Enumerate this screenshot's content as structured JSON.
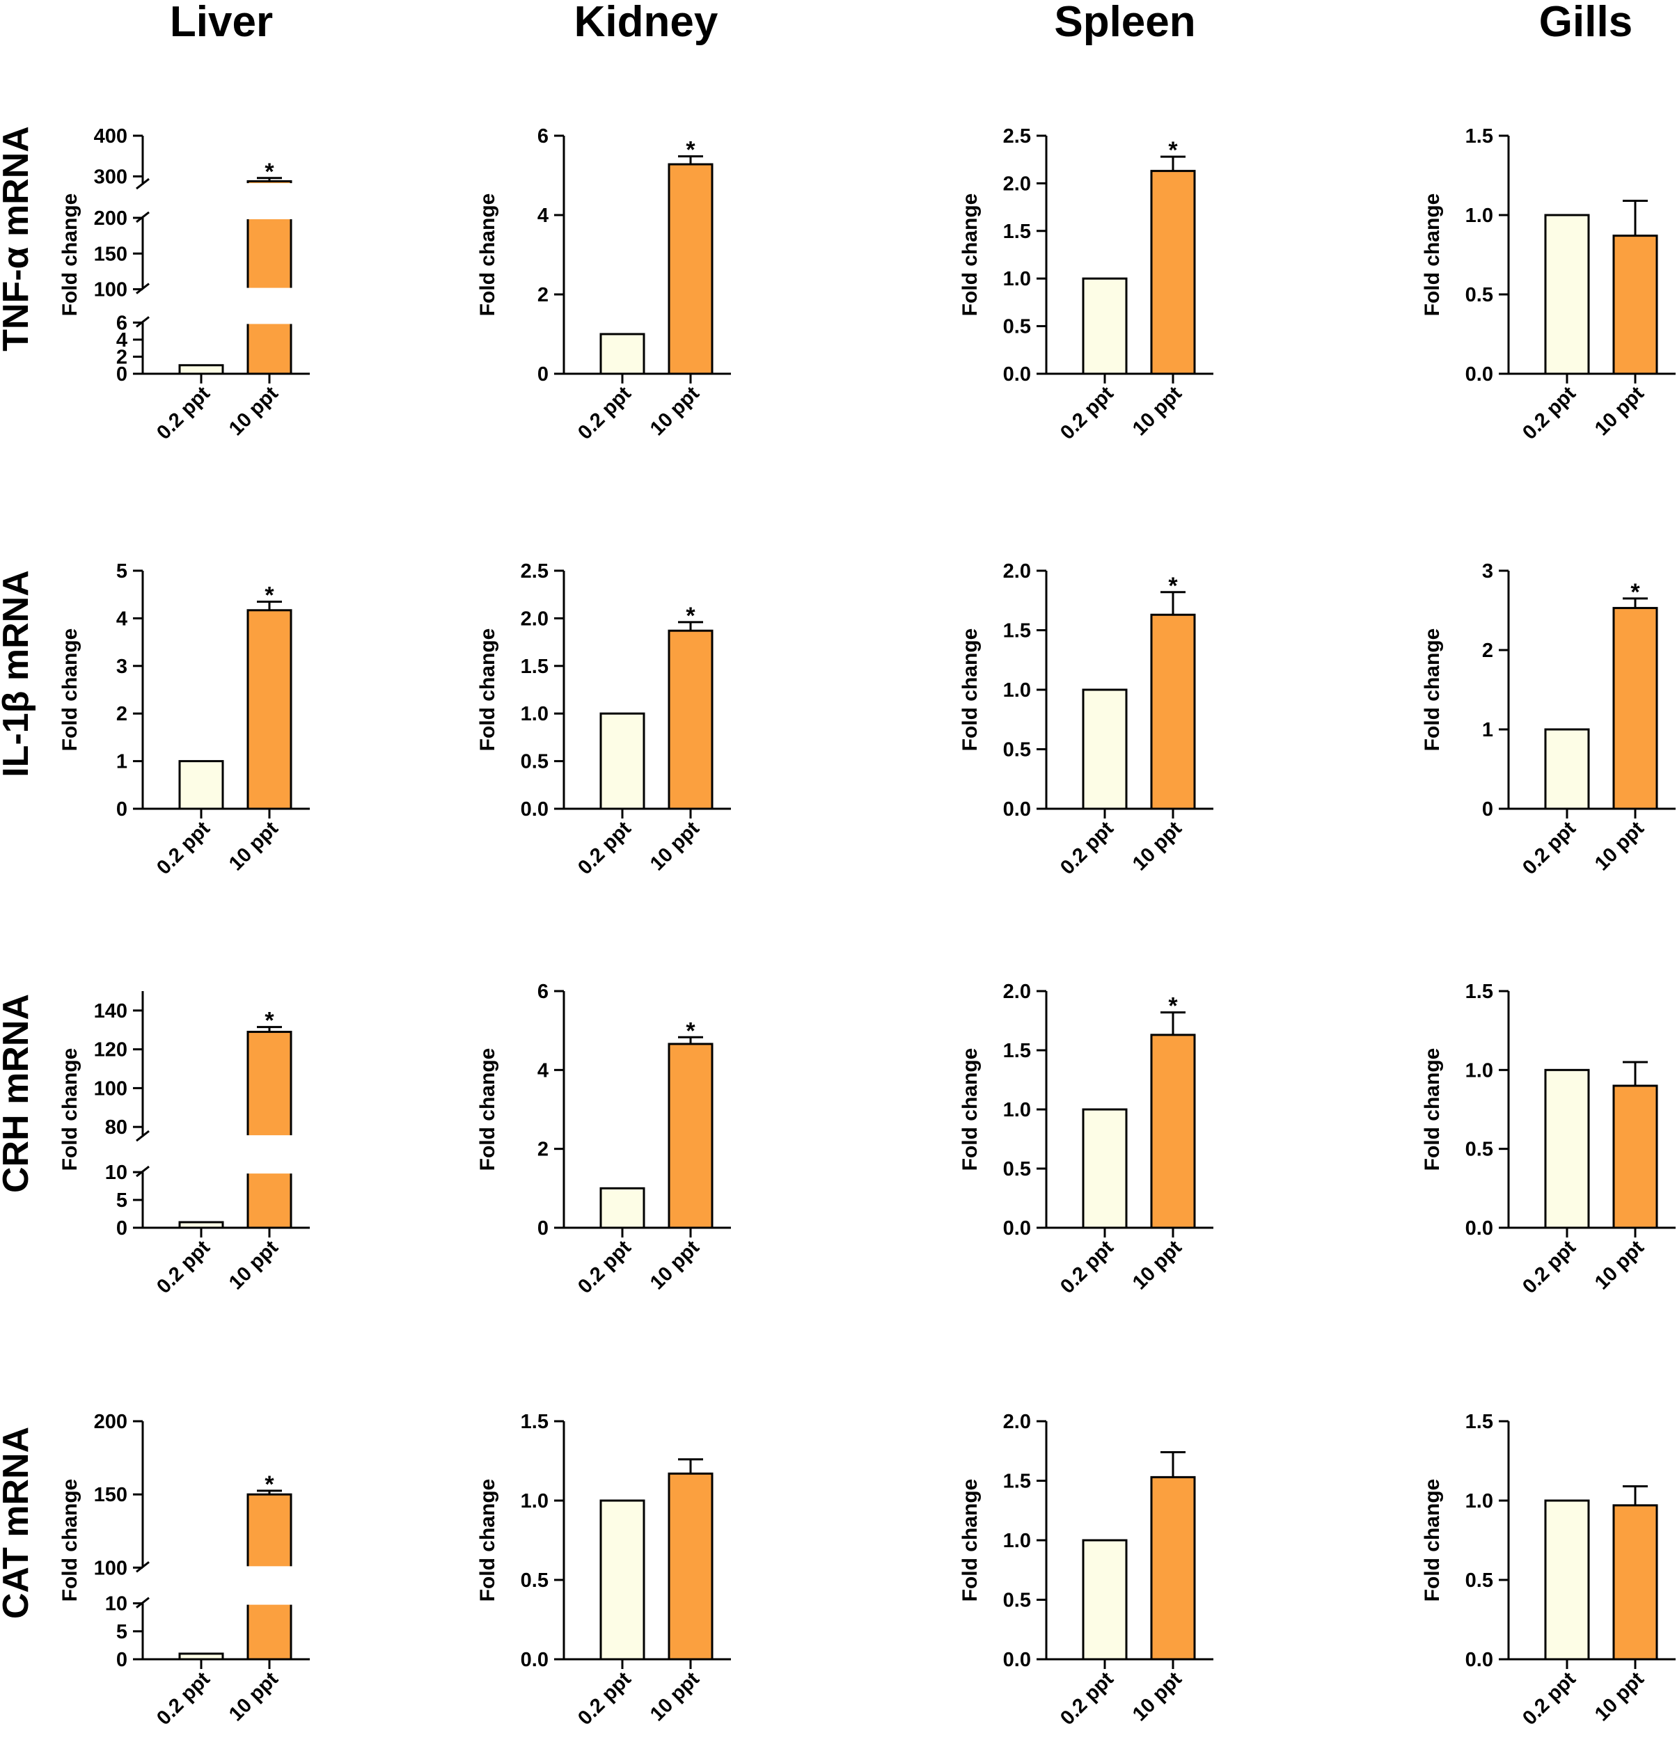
{
  "figure": {
    "tissues": [
      "Liver",
      "Kidney",
      "Spleen",
      "Gills"
    ],
    "genes": [
      "TNF-α mRNA",
      "IL-1β mRNA",
      "CRH mRNA",
      "CAT mRNA"
    ],
    "y_axis_label": "Fold change",
    "categories": [
      "0.2 ppt",
      "10 ppt"
    ],
    "significance_marker": "*",
    "colors": {
      "control_fill": "#fdfde6",
      "treatment_fill": "#fba03f",
      "stroke": "#000000"
    }
  },
  "chart_data": [
    {
      "type": "bar",
      "gene": "TNF-α mRNA",
      "tissue": "Liver",
      "categories": [
        "0.2 ppt",
        "10 ppt"
      ],
      "values": [
        1,
        288
      ],
      "errors": [
        0,
        8
      ],
      "significant": [
        false,
        true
      ],
      "ylabel": "Fold change",
      "broken_axis": true,
      "segments": [
        {
          "range": [
            0,
            6
          ],
          "ticks": [
            "0",
            "2",
            "4",
            "6"
          ]
        },
        {
          "range": [
            100,
            200
          ],
          "ticks": [
            "100",
            "150",
            "200"
          ]
        },
        {
          "range": [
            280,
            400
          ],
          "ticks": [
            "300",
            "400"
          ]
        }
      ]
    },
    {
      "type": "bar",
      "gene": "TNF-α mRNA",
      "tissue": "Kidney",
      "categories": [
        "0.2 ppt",
        "10 ppt"
      ],
      "values": [
        1,
        5.28
      ],
      "errors": [
        0,
        0.2
      ],
      "significant": [
        false,
        true
      ],
      "ylabel": "Fold change",
      "ylim": [
        0,
        6
      ],
      "ticks": [
        "0",
        "2",
        "4",
        "6"
      ]
    },
    {
      "type": "bar",
      "gene": "TNF-α mRNA",
      "tissue": "Spleen",
      "categories": [
        "0.2 ppt",
        "10 ppt"
      ],
      "values": [
        1,
        2.13
      ],
      "errors": [
        0,
        0.15
      ],
      "significant": [
        false,
        true
      ],
      "ylabel": "Fold change",
      "ylim": [
        0,
        2.5
      ],
      "ticks": [
        "0.0",
        "0.5",
        "1.0",
        "1.5",
        "2.0",
        "2.5"
      ]
    },
    {
      "type": "bar",
      "gene": "TNF-α mRNA",
      "tissue": "Gills",
      "categories": [
        "0.2 ppt",
        "10 ppt"
      ],
      "values": [
        1,
        0.87
      ],
      "errors": [
        0,
        0.22
      ],
      "significant": [
        false,
        false
      ],
      "ylabel": "Fold change",
      "ylim": [
        0,
        1.5
      ],
      "ticks": [
        "0.0",
        "0.5",
        "1.0",
        "1.5"
      ]
    },
    {
      "type": "bar",
      "gene": "IL-1β mRNA",
      "tissue": "Liver",
      "categories": [
        "0.2 ppt",
        "10 ppt"
      ],
      "values": [
        1,
        4.17
      ],
      "errors": [
        0,
        0.18
      ],
      "significant": [
        false,
        true
      ],
      "ylabel": "Fold change",
      "ylim": [
        0,
        5
      ],
      "ticks": [
        "0",
        "1",
        "2",
        "3",
        "4",
        "5"
      ]
    },
    {
      "type": "bar",
      "gene": "IL-1β mRNA",
      "tissue": "Kidney",
      "categories": [
        "0.2 ppt",
        "10 ppt"
      ],
      "values": [
        1,
        1.87
      ],
      "errors": [
        0,
        0.09
      ],
      "significant": [
        false,
        true
      ],
      "ylabel": "Fold change",
      "ylim": [
        0,
        2.5
      ],
      "ticks": [
        "0.0",
        "0.5",
        "1.0",
        "1.5",
        "2.0",
        "2.5"
      ]
    },
    {
      "type": "bar",
      "gene": "IL-1β mRNA",
      "tissue": "Spleen",
      "categories": [
        "0.2 ppt",
        "10 ppt"
      ],
      "values": [
        1,
        1.63
      ],
      "errors": [
        0,
        0.19
      ],
      "significant": [
        false,
        true
      ],
      "ylabel": "Fold change",
      "ylim": [
        0,
        2
      ],
      "ticks": [
        "0.0",
        "0.5",
        "1.0",
        "1.5",
        "2.0"
      ]
    },
    {
      "type": "bar",
      "gene": "IL-1β mRNA",
      "tissue": "Gills",
      "categories": [
        "0.2 ppt",
        "10 ppt"
      ],
      "values": [
        1,
        2.53
      ],
      "errors": [
        0,
        0.12
      ],
      "significant": [
        false,
        true
      ],
      "ylabel": "Fold change",
      "ylim": [
        0,
        3
      ],
      "ticks": [
        "0",
        "1",
        "2",
        "3"
      ]
    },
    {
      "type": "bar",
      "gene": "CRH mRNA",
      "tissue": "Liver",
      "categories": [
        "0.2 ppt",
        "10 ppt"
      ],
      "values": [
        1,
        129
      ],
      "errors": [
        0,
        2.5
      ],
      "significant": [
        false,
        true
      ],
      "ylabel": "Fold change",
      "broken_axis": true,
      "segments": [
        {
          "range": [
            0,
            10
          ],
          "ticks": [
            "0",
            "5",
            "10"
          ]
        },
        {
          "range": [
            75,
            150
          ],
          "ticks": [
            "80",
            "100",
            "120",
            "140"
          ]
        }
      ]
    },
    {
      "type": "bar",
      "gene": "CRH mRNA",
      "tissue": "Kidney",
      "categories": [
        "0.2 ppt",
        "10 ppt"
      ],
      "values": [
        1,
        4.66
      ],
      "errors": [
        0,
        0.17
      ],
      "significant": [
        false,
        true
      ],
      "ylabel": "Fold change",
      "ylim": [
        0,
        6
      ],
      "ticks": [
        "0",
        "2",
        "4",
        "6"
      ]
    },
    {
      "type": "bar",
      "gene": "CRH mRNA",
      "tissue": "Spleen",
      "categories": [
        "0.2 ppt",
        "10 ppt"
      ],
      "values": [
        1,
        1.63
      ],
      "errors": [
        0,
        0.19
      ],
      "significant": [
        false,
        true
      ],
      "ylabel": "Fold change",
      "ylim": [
        0,
        2
      ],
      "ticks": [
        "0.0",
        "0.5",
        "1.0",
        "1.5",
        "2.0"
      ]
    },
    {
      "type": "bar",
      "gene": "CRH mRNA",
      "tissue": "Gills",
      "categories": [
        "0.2 ppt",
        "10 ppt"
      ],
      "values": [
        1,
        0.9
      ],
      "errors": [
        0,
        0.15
      ],
      "significant": [
        false,
        false
      ],
      "ylabel": "Fold change",
      "ylim": [
        0,
        1.5
      ],
      "ticks": [
        "0.0",
        "0.5",
        "1.0",
        "1.5"
      ]
    },
    {
      "type": "bar",
      "gene": "CAT mRNA",
      "tissue": "Liver",
      "categories": [
        "0.2 ppt",
        "10 ppt"
      ],
      "values": [
        1,
        150
      ],
      "errors": [
        0,
        2.5
      ],
      "significant": [
        false,
        true
      ],
      "ylabel": "Fold change",
      "broken_axis": true,
      "segments": [
        {
          "range": [
            0,
            10
          ],
          "ticks": [
            "0",
            "5",
            "10"
          ]
        },
        {
          "range": [
            100,
            200
          ],
          "ticks": [
            "100",
            "150",
            "200"
          ]
        }
      ]
    },
    {
      "type": "bar",
      "gene": "CAT mRNA",
      "tissue": "Kidney",
      "categories": [
        "0.2 ppt",
        "10 ppt"
      ],
      "values": [
        1,
        1.17
      ],
      "errors": [
        0,
        0.09
      ],
      "significant": [
        false,
        false
      ],
      "ylabel": "Fold change",
      "ylim": [
        0,
        1.5
      ],
      "ticks": [
        "0.0",
        "0.5",
        "1.0",
        "1.5"
      ]
    },
    {
      "type": "bar",
      "gene": "CAT mRNA",
      "tissue": "Spleen",
      "categories": [
        "0.2 ppt",
        "10 ppt"
      ],
      "values": [
        1,
        1.53
      ],
      "errors": [
        0,
        0.21
      ],
      "significant": [
        false,
        false
      ],
      "ylabel": "Fold change",
      "ylim": [
        0,
        2
      ],
      "ticks": [
        "0.0",
        "0.5",
        "1.0",
        "1.5",
        "2.0"
      ]
    },
    {
      "type": "bar",
      "gene": "CAT mRNA",
      "tissue": "Gills",
      "categories": [
        "0.2 ppt",
        "10 ppt"
      ],
      "values": [
        1,
        0.97
      ],
      "errors": [
        0,
        0.12
      ],
      "significant": [
        false,
        false
      ],
      "ylabel": "Fold change",
      "ylim": [
        0,
        1.5
      ],
      "ticks": [
        "0.0",
        "0.5",
        "1.0",
        "1.5"
      ]
    }
  ]
}
